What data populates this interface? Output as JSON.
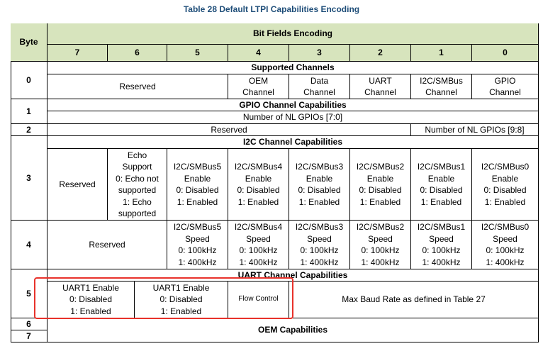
{
  "title": "Table 28 Default LTPI Capabilities Encoding",
  "table": {
    "byte_header": "Byte",
    "group_header": "Bit Fields Encoding",
    "bit_headers": [
      "7",
      "6",
      "5",
      "4",
      "3",
      "2",
      "1",
      "0"
    ],
    "rows": [
      {
        "byte": "0",
        "heading": "Supported Channels",
        "cells": [
          "Reserved",
          "OEM\nChannel",
          "Data\nChannel",
          "UART\nChannel",
          "I2C/SMBus\nChannel",
          "GPIO\nChannel"
        ]
      },
      {
        "byte": "1",
        "heading": "GPIO Channel Capabilities",
        "cells": [
          "Number of NL GPIOs [7:0]"
        ]
      },
      {
        "byte": "2",
        "cells": [
          "Reserved",
          "Number of NL GPIOs [9:8]"
        ]
      },
      {
        "byte": "3",
        "heading": "I2C Channel Capabilities",
        "cells": [
          "Reserved",
          "Echo\nSupport\n0: Echo not\nsupported\n1: Echo\nsupported",
          "I2C/SMBus5\nEnable\n0: Disabled\n1: Enabled",
          "I2C/SMBus4\nEnable\n0: Disabled\n1: Enabled",
          "I2C/SMBus3\nEnable\n0: Disabled\n1: Enabled",
          "I2C/SMBus2\nEnable\n0: Disabled\n1: Enabled",
          "I2C/SMBus1\nEnable\n0: Disabled\n1: Enabled",
          "I2C/SMBus0\nEnable\n0: Disabled\n1: Enabled"
        ]
      },
      {
        "byte": "4",
        "cells": [
          "Reserved",
          "I2C/SMBus5\nSpeed\n0: 100kHz\n1: 400kHz",
          "I2C/SMBus4\nSpeed\n0: 100kHz\n1: 400kHz",
          "I2C/SMBus3\nSpeed\n0: 100kHz\n1: 400kHz",
          "I2C/SMBus2\nSpeed\n0: 100kHz\n1: 400kHz",
          "I2C/SMBus1\nSpeed\n0: 100kHz\n1: 400kHz",
          "I2C/SMBus0\nSpeed\n0: 100kHz\n1: 400kHz"
        ]
      },
      {
        "byte": "5",
        "heading": "UART Channel Capabilities",
        "cells": [
          "UART1 Enable\n0: Disabled\n1: Enabled",
          "UART1 Enable\n0: Disabled\n1: Enabled",
          "Flow Control",
          "Max Baud Rate as defined in Table 27"
        ]
      },
      {
        "byte": "6",
        "heading": "OEM Capabilities"
      },
      {
        "byte": "7"
      }
    ]
  }
}
